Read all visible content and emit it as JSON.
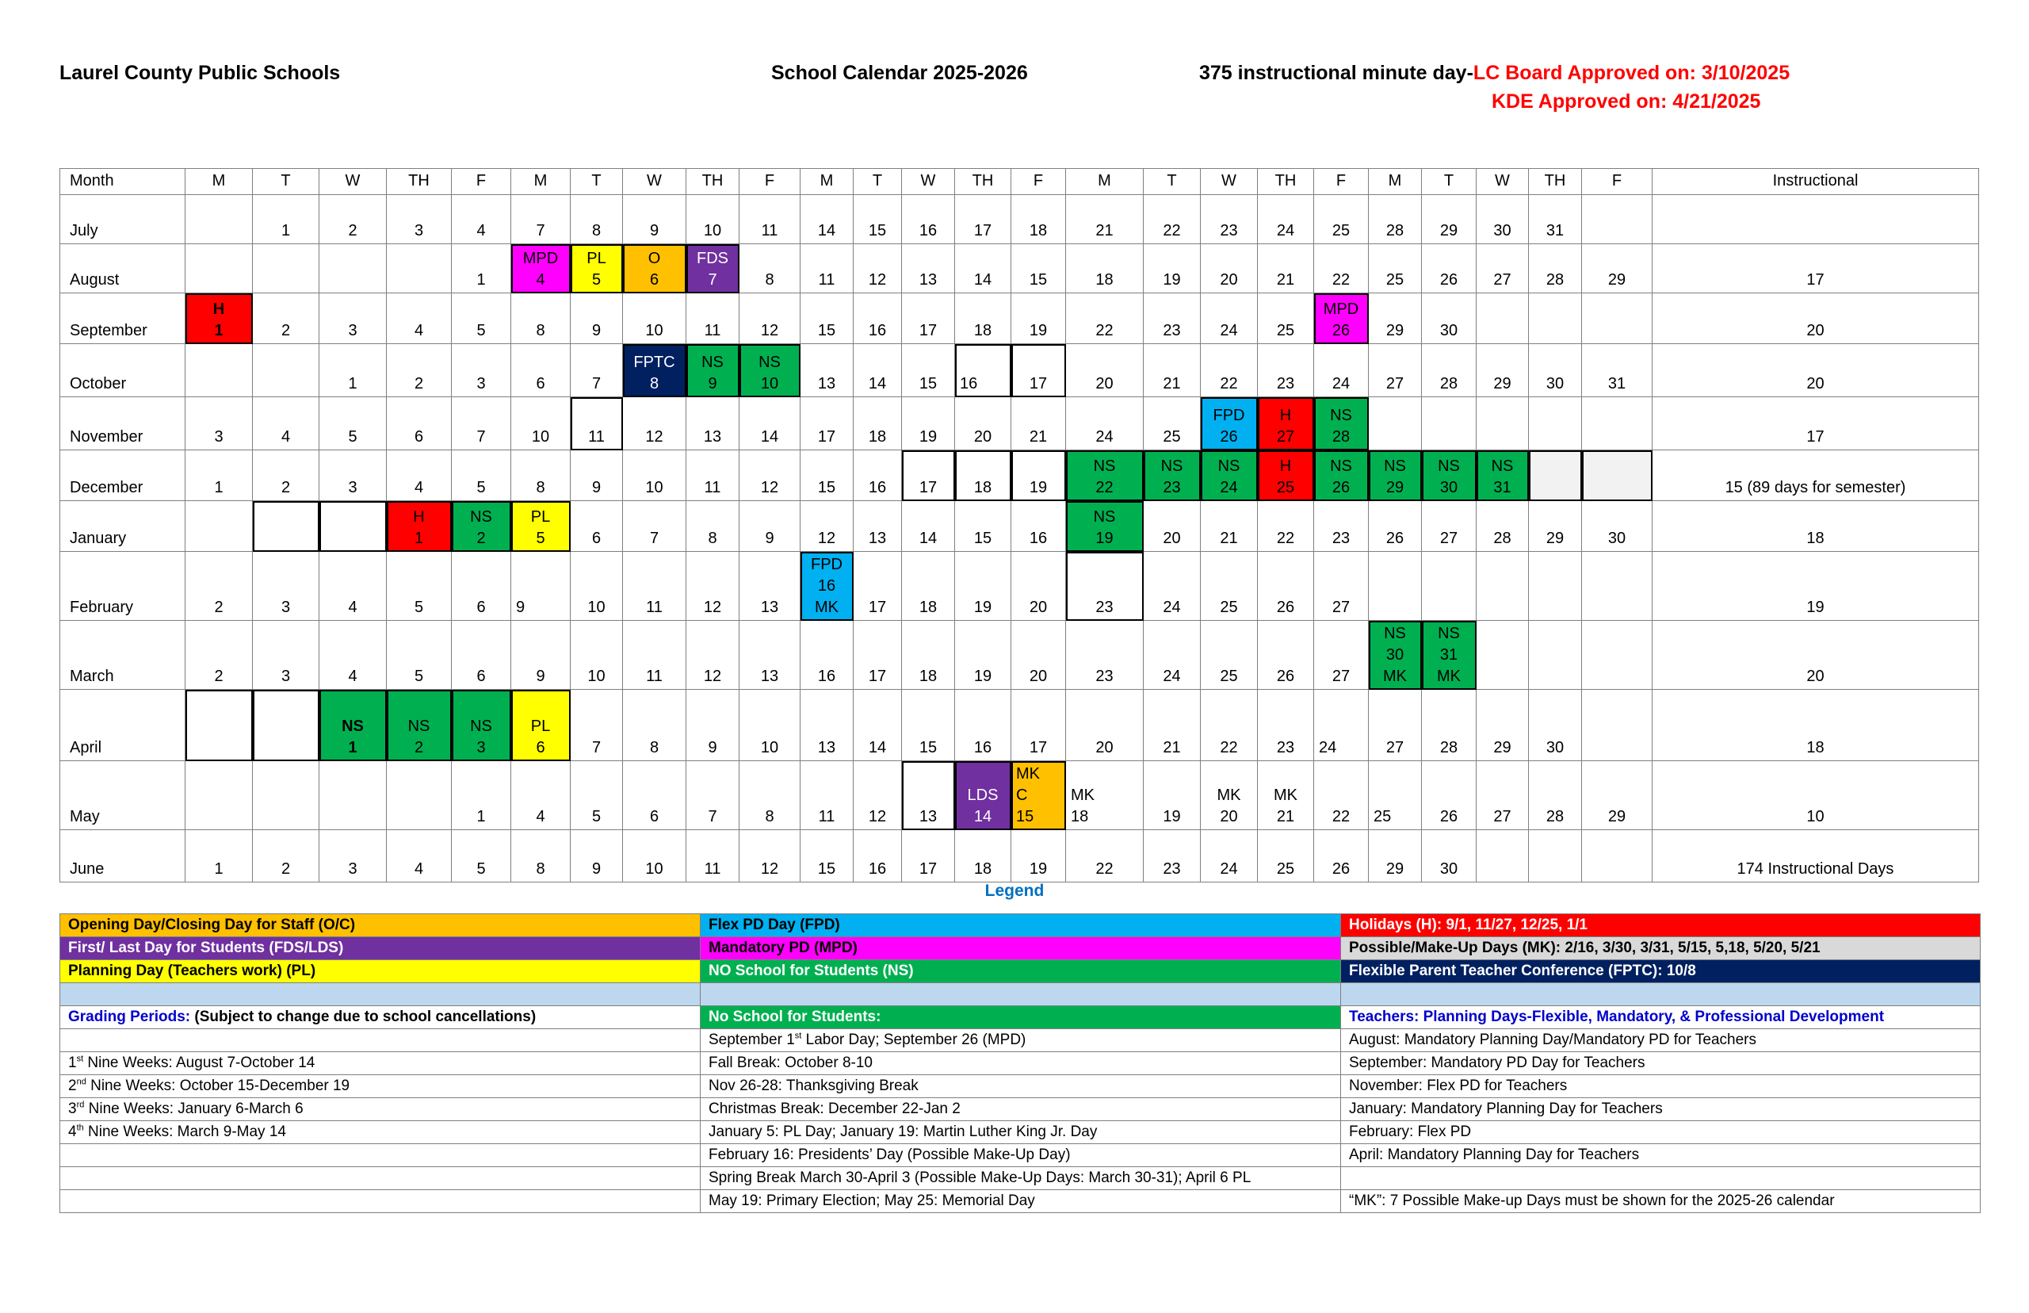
{
  "header": {
    "district": "Laurel County Public Schools",
    "title": "School Calendar 2025-2026",
    "minutes": "375 instructional minute day-",
    "board_approved": "LC Board Approved on:  3/10/2025",
    "kde_approved": "KDE Approved on: 4/21/2025"
  },
  "colors": {
    "mpd": "#ff00ff",
    "pl": "#ffff00",
    "o": "#ffc000",
    "fds": "#7030a0",
    "h": "#ff0000",
    "fptc": "#002060",
    "ns": "#00b050",
    "fpd": "#00b0f0",
    "gray": "#f2f2f2",
    "mk": "#d9d9d9",
    "band": "#bdd7ee",
    "accent_red": "#ff0000",
    "accent_blue": "#0070c0",
    "link_blue": "#0000cc"
  },
  "calendar": {
    "columns": [
      "Month",
      "M",
      "T",
      "W",
      "TH",
      "F",
      "M",
      "T",
      "W",
      "TH",
      "F",
      "M",
      "T",
      "W",
      "TH",
      "F",
      "M",
      "T",
      "W",
      "TH",
      "F",
      "M",
      "T",
      "W",
      "TH",
      "F",
      "Instructional"
    ],
    "months": [
      {
        "name": "July",
        "instructional": "",
        "days": [
          "",
          "1",
          "2",
          "3",
          "4",
          "7",
          "8",
          "9",
          "10",
          "11",
          "14",
          "15",
          "16",
          "17",
          "18",
          "21",
          "22",
          "23",
          "24",
          "25",
          "28",
          "29",
          "30",
          "31",
          ""
        ]
      },
      {
        "name": "August",
        "instructional": "17",
        "days": [
          "",
          "",
          "",
          "",
          "1",
          {
            "l": [
              "MPD",
              "4"
            ],
            "k": "mpd"
          },
          {
            "l": [
              "PL",
              "5"
            ],
            "k": "pl"
          },
          {
            "l": [
              "O",
              "6"
            ],
            "k": "o"
          },
          {
            "l": [
              "FDS",
              "7"
            ],
            "k": "fds"
          },
          "8",
          "11",
          "12",
          "13",
          "14",
          "15",
          "18",
          "19",
          "20",
          "21",
          "22",
          "25",
          "26",
          "27",
          "28",
          "29"
        ]
      },
      {
        "name": "September",
        "instructional": "20",
        "days": [
          {
            "l": [
              "H",
              "1"
            ],
            "k": "h",
            "bold": true
          },
          "2",
          "3",
          "4",
          "5",
          "8",
          "9",
          "10",
          "11",
          "12",
          "15",
          "16",
          "17",
          "18",
          "19",
          "22",
          "23",
          "24",
          "25",
          {
            "l": [
              "MPD",
              "26"
            ],
            "k": "mpd"
          },
          "29",
          "30",
          "",
          "",
          ""
        ]
      },
      {
        "name": "October",
        "instructional": "20",
        "days": [
          "",
          "",
          "1",
          "2",
          "3",
          "6",
          "7",
          {
            "l": [
              "FPTC",
              "8"
            ],
            "k": "fptc"
          },
          {
            "l": [
              "NS",
              "9"
            ],
            "k": "ns"
          },
          {
            "l": [
              "NS",
              "10"
            ],
            "k": "ns"
          },
          "13",
          "14",
          "15",
          {
            "l": [
              "16"
            ],
            "box": true,
            "left": true
          },
          {
            "l": [
              "17"
            ],
            "box": true
          },
          "20",
          "21",
          "22",
          "23",
          "24",
          "27",
          "28",
          "29",
          "30",
          "31"
        ]
      },
      {
        "name": "November",
        "instructional": "17",
        "days": [
          "3",
          "4",
          "5",
          "6",
          "7",
          "10",
          {
            "l": [
              "11"
            ],
            "box": true
          },
          "12",
          "13",
          "14",
          "17",
          "18",
          "19",
          "20",
          "21",
          "24",
          "25",
          {
            "l": [
              "FPD",
              "26"
            ],
            "k": "fpd"
          },
          {
            "l": [
              "H",
              "27"
            ],
            "k": "h"
          },
          {
            "l": [
              "NS",
              "28"
            ],
            "k": "ns"
          },
          "",
          "",
          "",
          "",
          ""
        ]
      },
      {
        "name": "December",
        "instructional": "15 (89 days for semester)",
        "days": [
          "1",
          "2",
          "3",
          "4",
          "5",
          "8",
          "9",
          "10",
          "11",
          "12",
          "15",
          "16",
          {
            "l": [
              "17"
            ],
            "box": true
          },
          {
            "l": [
              "18"
            ],
            "box": true
          },
          {
            "l": [
              "19"
            ],
            "box": true
          },
          {
            "l": [
              "NS",
              "22"
            ],
            "k": "ns"
          },
          {
            "l": [
              "NS",
              "23"
            ],
            "k": "ns"
          },
          {
            "l": [
              "NS",
              "24"
            ],
            "k": "ns"
          },
          {
            "l": [
              "H",
              "25"
            ],
            "k": "h"
          },
          {
            "l": [
              "NS",
              "26"
            ],
            "k": "ns"
          },
          {
            "l": [
              "NS",
              "29"
            ],
            "k": "ns"
          },
          {
            "l": [
              "NS",
              "30"
            ],
            "k": "ns"
          },
          {
            "l": [
              "NS",
              "31"
            ],
            "k": "ns"
          },
          {
            "l": [],
            "k": "gray"
          },
          {
            "l": [],
            "k": "gray"
          }
        ]
      },
      {
        "name": "January",
        "instructional": "18",
        "days": [
          "",
          {
            "l": [],
            "box": true
          },
          {
            "l": [],
            "box": true
          },
          {
            "l": [
              "H",
              "1"
            ],
            "k": "h"
          },
          {
            "l": [
              "NS",
              "2"
            ],
            "k": "ns"
          },
          {
            "l": [
              "PL",
              "5"
            ],
            "k": "pl"
          },
          "6",
          "7",
          "8",
          "9",
          "12",
          "13",
          "14",
          "15",
          "16",
          {
            "l": [
              "NS",
              "19"
            ],
            "k": "ns"
          },
          "20",
          "21",
          "22",
          "23",
          "26",
          "27",
          "28",
          "29",
          "30"
        ]
      },
      {
        "name": "February",
        "instructional": "19",
        "days": [
          "2",
          "3",
          "4",
          "5",
          "6",
          {
            "l": [
              "9"
            ],
            "left": true
          },
          "10",
          "11",
          "12",
          "13",
          {
            "l": [
              "FPD",
              "16",
              "MK"
            ],
            "k": "fpd"
          },
          "17",
          "18",
          "19",
          "20",
          {
            "l": [
              "23"
            ],
            "box": true
          },
          "24",
          "25",
          "26",
          "27",
          "",
          "",
          "",
          "",
          ""
        ]
      },
      {
        "name": "March",
        "instructional": "20",
        "days": [
          "2",
          "3",
          "4",
          "5",
          "6",
          "9",
          "10",
          "11",
          "12",
          "13",
          "16",
          "17",
          "18",
          "19",
          "20",
          "23",
          "24",
          "25",
          "26",
          "27",
          {
            "l": [
              "NS",
              "30",
              "MK"
            ],
            "k": "ns"
          },
          {
            "l": [
              "NS",
              "31",
              "MK"
            ],
            "k": "ns"
          },
          "",
          "",
          ""
        ]
      },
      {
        "name": "April",
        "instructional": "18",
        "days": [
          {
            "l": [],
            "box": true
          },
          {
            "l": [],
            "box": true
          },
          {
            "l": [
              "NS",
              "1"
            ],
            "k": "ns",
            "bold": true
          },
          {
            "l": [
              "NS",
              "2"
            ],
            "k": "ns"
          },
          {
            "l": [
              "NS",
              "3"
            ],
            "k": "ns"
          },
          {
            "l": [
              "PL",
              "6"
            ],
            "k": "pl"
          },
          "7",
          "8",
          "9",
          "10",
          "13",
          "14",
          "15",
          "16",
          "17",
          "20",
          "21",
          "22",
          "23",
          {
            "l": [
              "24"
            ],
            "left": true
          },
          "27",
          "28",
          "29",
          "30",
          ""
        ]
      },
      {
        "name": "May",
        "instructional": "10",
        "days": [
          "",
          "",
          "",
          "",
          "1",
          "4",
          "5",
          "6",
          "7",
          "8",
          "11",
          "12",
          {
            "l": [
              "13"
            ],
            "box": true
          },
          {
            "l": [
              "LDS",
              "14"
            ],
            "k": "fds"
          },
          {
            "l": [
              "MK",
              "C",
              "15"
            ],
            "k": "o",
            "left": true
          },
          {
            "l": [
              "MK",
              "18"
            ],
            "left": true
          },
          "19",
          {
            "l": [
              "MK",
              "20"
            ]
          },
          {
            "l": [
              "MK",
              "21"
            ]
          },
          "22",
          {
            "l": [
              "25"
            ],
            "left": true
          },
          "26",
          "27",
          "28",
          "29"
        ]
      },
      {
        "name": "June",
        "instructional": "174 Instructional Days",
        "days": [
          "1",
          "2",
          "3",
          "4",
          "5",
          "8",
          "9",
          "10",
          "11",
          "12",
          "15",
          "16",
          "17",
          "18",
          "19",
          "22",
          "23",
          "24",
          "25",
          "26",
          "29",
          "30",
          "",
          "",
          ""
        ]
      }
    ]
  },
  "legend": {
    "title": "Legend",
    "rows": [
      [
        {
          "bg": "o",
          "fg": "#000000",
          "bold": true,
          "parts": [
            {
              "t": "Opening Day/Closing Day for Staff (O/C)"
            }
          ]
        },
        {
          "bg": "fpd",
          "fg": "#000000",
          "bold": true,
          "parts": [
            {
              "t": "Flex PD Day (FPD)"
            }
          ]
        },
        {
          "bg": "h",
          "fg": "#ffffff",
          "bold": true,
          "parts": [
            {
              "t": "Holidays (H): 9/1, 11/27, 12/25, 1/1"
            }
          ]
        }
      ],
      [
        {
          "bg": "fds",
          "fg": "#ffffff",
          "bold": true,
          "parts": [
            {
              "t": "First/ Last Day for Students (FDS/LDS)"
            }
          ]
        },
        {
          "bg": "mpd",
          "fg": "#000000",
          "bold": true,
          "parts": [
            {
              "t": "Mandatory PD (MPD)"
            }
          ]
        },
        {
          "bg": "mk",
          "fg": "#000000",
          "bold": true,
          "parts": [
            {
              "t": "Possible/Make-Up Days (MK): 2/16, 3/30, 3/31, 5/15, 5,18,  5/20, 5/21"
            }
          ]
        }
      ],
      [
        {
          "bg": "pl",
          "fg": "#000000",
          "bold": true,
          "parts": [
            {
              "t": "Planning Day (Teachers work) (PL)"
            }
          ]
        },
        {
          "bg": "ns",
          "fg": "#ffffff",
          "bold": true,
          "parts": [
            {
              "t": "NO School for Students (NS)"
            }
          ]
        },
        {
          "bg": "fptc",
          "fg": "#ffffff",
          "bold": true,
          "parts": [
            {
              "t": "Flexible Parent Teacher Conference (FPTC):  10/8"
            }
          ]
        }
      ],
      [
        {
          "bg": "band",
          "parts": []
        },
        {
          "bg": "band",
          "parts": []
        },
        {
          "bg": "band",
          "parts": []
        }
      ],
      [
        {
          "bold": true,
          "parts": [
            {
              "t": "Grading Periods:",
              "c": "link_blue"
            },
            {
              "t": " (Subject to change due to school cancellations)"
            }
          ]
        },
        {
          "bg": "ns",
          "fg": "#ffffff",
          "bold": true,
          "parts": [
            {
              "t": "No School for Students:"
            }
          ]
        },
        {
          "bold": true,
          "parts": [
            {
              "t": "Teachers: Planning Days-Flexible, Mandatory, & Professional Development",
              "c": "link_blue"
            }
          ]
        }
      ],
      [
        {
          "parts": []
        },
        {
          "parts": [
            {
              "t": "September 1"
            },
            {
              "t": "st",
              "sup": true
            },
            {
              "t": " Labor Day; September 26 (MPD)"
            }
          ]
        },
        {
          "parts": [
            {
              "t": "August: Mandatory Planning Day/Mandatory PD for Teachers"
            }
          ]
        }
      ],
      [
        {
          "parts": [
            {
              "t": "1"
            },
            {
              "t": "st",
              "sup": true
            },
            {
              "t": " Nine Weeks:  August 7-October 14"
            }
          ]
        },
        {
          "parts": [
            {
              "t": "Fall Break:  October 8-10"
            }
          ]
        },
        {
          "parts": [
            {
              "t": "September:  Mandatory PD Day for Teachers"
            }
          ]
        }
      ],
      [
        {
          "parts": [
            {
              "t": "2"
            },
            {
              "t": "nd",
              "sup": true
            },
            {
              "t": " Nine Weeks:  October 15-December 19"
            }
          ]
        },
        {
          "parts": [
            {
              "t": "Nov 26-28: Thanksgiving Break"
            }
          ]
        },
        {
          "parts": [
            {
              "t": "November:  Flex PD for Teachers"
            }
          ]
        }
      ],
      [
        {
          "parts": [
            {
              "t": "3"
            },
            {
              "t": "rd",
              "sup": true
            },
            {
              "t": " Nine Weeks:  January 6-March 6"
            }
          ]
        },
        {
          "parts": [
            {
              "t": "Christmas Break:  December 22-Jan 2"
            }
          ]
        },
        {
          "parts": [
            {
              "t": "January:  Mandatory Planning Day for Teachers"
            }
          ]
        }
      ],
      [
        {
          "parts": [
            {
              "t": "4"
            },
            {
              "t": "th",
              "sup": true
            },
            {
              "t": " Nine Weeks:  March 9-May 14"
            }
          ]
        },
        {
          "parts": [
            {
              "t": "January 5:  PL Day; January 19: Martin Luther King Jr. Day"
            }
          ]
        },
        {
          "parts": [
            {
              "t": "February:  Flex PD"
            }
          ]
        }
      ],
      [
        {
          "parts": []
        },
        {
          "parts": [
            {
              "t": "February 16: Presidents’ Day (Possible Make-Up Day)"
            }
          ]
        },
        {
          "parts": [
            {
              "t": "April:  Mandatory Planning Day for Teachers"
            }
          ]
        }
      ],
      [
        {
          "parts": []
        },
        {
          "parts": [
            {
              "t": "Spring Break March 30-April 3 (Possible Make-Up Days:  March 30-31); April 6 PL"
            }
          ]
        },
        {
          "parts": []
        }
      ],
      [
        {
          "parts": []
        },
        {
          "parts": [
            {
              "t": "May 19: Primary Election; May 25: Memorial Day"
            }
          ]
        },
        {
          "parts": [
            {
              "t": "“MK”: 7 Possible Make-up Days must be shown for the 2025-26 calendar"
            }
          ]
        }
      ]
    ]
  }
}
